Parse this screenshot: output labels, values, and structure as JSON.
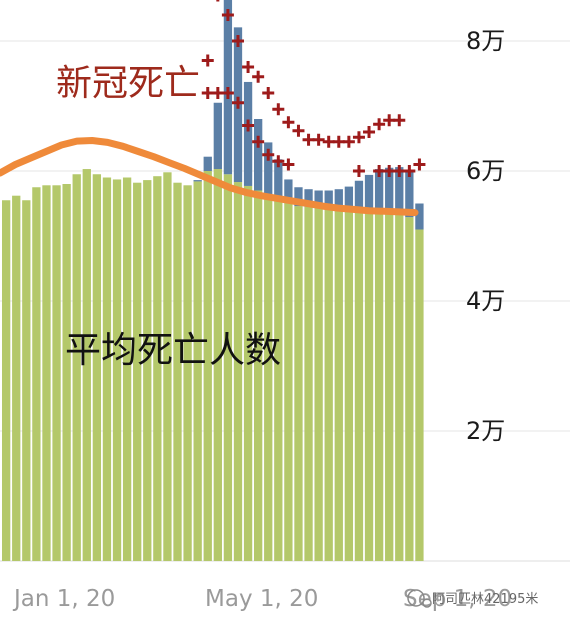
{
  "chart_data": {
    "type": "bar",
    "y_ticks": [
      "2万",
      "4万",
      "6万",
      "8万"
    ],
    "y_tick_values": [
      20000,
      40000,
      60000,
      80000
    ],
    "x_tick_labels": [
      "Jan 1, 20",
      "May 1, 20",
      "Sep 1, 20"
    ],
    "ylim": [
      0,
      90000
    ],
    "grid": true,
    "annotations": {
      "covid": "新冠死亡",
      "average": "平均死亡人数"
    },
    "watermark": "阿司匹林42195米",
    "colors": {
      "average_bar": "#b4c86a",
      "covid_bar": "#5b7fa6",
      "trend_line": "#ef8a3a",
      "marker": "#9e1b1b"
    },
    "series": [
      {
        "values": [
          55500,
          56200,
          55500,
          57500,
          57800,
          57800,
          58000,
          59500,
          60300,
          59500,
          59000,
          58700,
          59000,
          58200,
          58600,
          59200,
          59800,
          58200,
          57800,
          58400,
          60000,
          60300,
          59500,
          58300,
          57700,
          57000,
          56400,
          55800,
          55200,
          54600,
          54500,
          54400,
          54300,
          54200,
          54100,
          54000,
          53900,
          53800,
          53700,
          53600,
          52900,
          51000
        ]
      },
      {
        "values": [
          0,
          0,
          0,
          0,
          0,
          0,
          0,
          0,
          0,
          0,
          0,
          0,
          0,
          0,
          0,
          0,
          0,
          0,
          0,
          200,
          2200,
          10200,
          27700,
          23800,
          16000,
          11000,
          8000,
          6000,
          3500,
          2900,
          2700,
          2600,
          2700,
          3000,
          3500,
          4500,
          5500,
          6500,
          6800,
          7000,
          7300,
          4000
        ]
      },
      {
        "values": [
          null,
          null,
          null,
          null,
          null,
          null,
          null,
          null,
          null,
          null,
          null,
          null,
          null,
          null,
          null,
          null,
          null,
          null,
          null,
          null,
          77000,
          87000,
          84000,
          80000,
          76000,
          74500,
          72000,
          69500,
          67500,
          66200,
          64800,
          64800,
          64500,
          64500,
          64500,
          65200,
          66000,
          67200,
          67800,
          67800,
          null,
          null
        ]
      },
      {
        "values": [
          null,
          null,
          null,
          null,
          null,
          null,
          null,
          null,
          null,
          null,
          null,
          null,
          null,
          null,
          null,
          null,
          null,
          null,
          null,
          null,
          72000,
          72000,
          72000,
          70500,
          67000,
          64500,
          62500,
          61500,
          61000,
          null,
          null,
          null,
          null,
          null,
          null,
          60000,
          null,
          60000,
          60000,
          60000,
          60000,
          61000
        ]
      },
      {
        "values": [
          59700,
          61000,
          62000,
          63000,
          64000,
          64600,
          64700,
          64400,
          63800,
          63000,
          62200,
          61300,
          60400,
          59400,
          58400,
          57400,
          56700,
          56200,
          55800,
          55400,
          55000,
          54600,
          54300,
          54100,
          53900,
          53800,
          53700,
          53600
        ]
      }
    ]
  }
}
